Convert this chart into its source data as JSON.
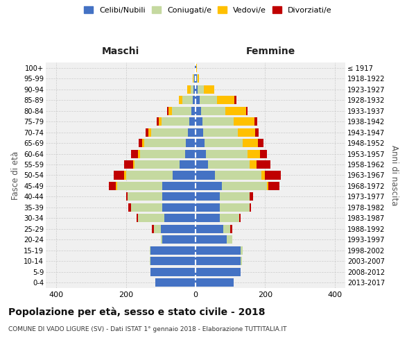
{
  "age_groups": [
    "0-4",
    "5-9",
    "10-14",
    "15-19",
    "20-24",
    "25-29",
    "30-34",
    "35-39",
    "40-44",
    "45-49",
    "50-54",
    "55-59",
    "60-64",
    "65-69",
    "70-74",
    "75-79",
    "80-84",
    "85-89",
    "90-94",
    "95-99",
    "100+"
  ],
  "birth_years": [
    "2013-2017",
    "2008-2012",
    "2003-2007",
    "1998-2002",
    "1993-1997",
    "1988-1992",
    "1983-1987",
    "1978-1982",
    "1973-1977",
    "1968-1972",
    "1963-1967",
    "1958-1962",
    "1953-1957",
    "1948-1952",
    "1943-1947",
    "1938-1942",
    "1933-1937",
    "1928-1932",
    "1923-1927",
    "1918-1922",
    "≤ 1917"
  ],
  "colors": {
    "celibi": "#4472c4",
    "coniugati": "#c5d9a0",
    "vedovi": "#ffc000",
    "divorziati": "#c00000"
  },
  "maschi": {
    "celibi": [
      115,
      130,
      130,
      130,
      95,
      100,
      90,
      95,
      95,
      95,
      65,
      45,
      30,
      28,
      22,
      18,
      12,
      8,
      5,
      3,
      2
    ],
    "coniugati": [
      0,
      0,
      2,
      2,
      5,
      20,
      75,
      90,
      100,
      130,
      135,
      130,
      130,
      120,
      105,
      80,
      55,
      30,
      8,
      2,
      0
    ],
    "vedovi": [
      0,
      0,
      0,
      0,
      0,
      0,
      0,
      0,
      0,
      3,
      5,
      5,
      5,
      5,
      8,
      8,
      10,
      10,
      10,
      2,
      0
    ],
    "divorziati": [
      0,
      0,
      0,
      0,
      0,
      5,
      5,
      8,
      5,
      20,
      30,
      25,
      20,
      10,
      8,
      5,
      5,
      0,
      0,
      0,
      0
    ]
  },
  "femmine": {
    "celibi": [
      110,
      130,
      130,
      130,
      90,
      80,
      70,
      70,
      70,
      75,
      55,
      35,
      30,
      25,
      22,
      20,
      15,
      12,
      5,
      3,
      2
    ],
    "coniugati": [
      0,
      0,
      3,
      5,
      15,
      20,
      55,
      85,
      85,
      130,
      135,
      120,
      120,
      110,
      100,
      90,
      70,
      50,
      18,
      2,
      0
    ],
    "vedovi": [
      0,
      0,
      0,
      0,
      0,
      0,
      0,
      0,
      0,
      5,
      10,
      20,
      35,
      45,
      50,
      60,
      60,
      50,
      30,
      5,
      1
    ],
    "divorziati": [
      0,
      0,
      0,
      0,
      0,
      5,
      5,
      5,
      10,
      30,
      45,
      40,
      20,
      15,
      10,
      8,
      5,
      5,
      0,
      0,
      0
    ]
  },
  "title": "Popolazione per età, sesso e stato civile - 2018",
  "subtitle": "COMUNE DI VADO LIGURE (SV) - Dati ISTAT 1° gennaio 2018 - Elaborazione TUTTITALIA.IT",
  "xlim": 430,
  "legend_labels": [
    "Celibi/Nubili",
    "Coniugati/e",
    "Vedovi/e",
    "Divorziati/e"
  ],
  "ylabel_left": "Fasce di età",
  "ylabel_right": "Anni di nascita",
  "header_left": "Maschi",
  "header_right": "Femmine",
  "bg_color": "#ffffff",
  "plot_bg": "#f0f0f0",
  "grid_color": "#cccccc"
}
